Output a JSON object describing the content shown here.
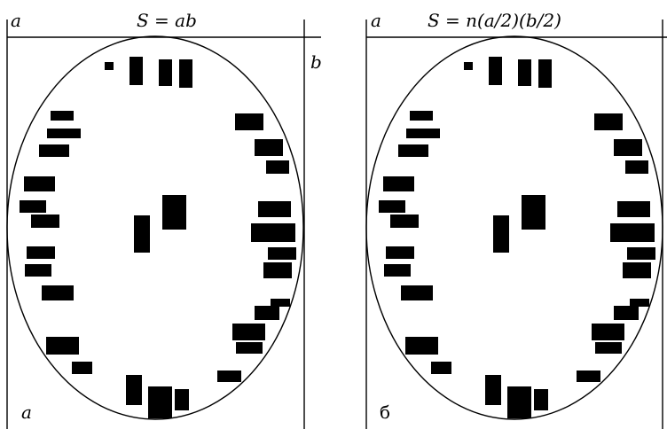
{
  "panels": [
    {
      "side_label": "a",
      "formula": "S = ab",
      "width_label": "a",
      "height_label": "b"
    },
    {
      "side_label": "б",
      "formula": "S = n(a/2)(b/2)",
      "width_label": "a"
    }
  ],
  "colors": {
    "ink": "#000000",
    "paper": "#ffffff"
  }
}
